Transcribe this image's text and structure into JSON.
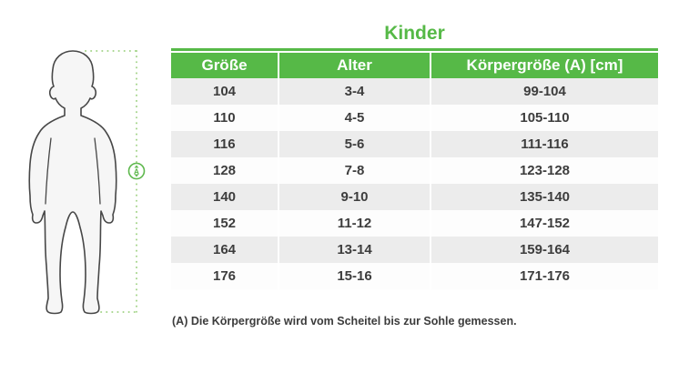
{
  "title": "Kinder",
  "colors": {
    "accent_green": "#56b947",
    "dotted_line_green": "#a6d58c",
    "marker_green": "#5eb84d",
    "row_alt_gray": "#ececec",
    "body_text": "#3d3d3d"
  },
  "figure": {
    "marker_label": "A"
  },
  "table": {
    "columns": [
      "Größe",
      "Alter",
      "Körpergröße (A) [cm]"
    ],
    "rows": [
      [
        "104",
        "3-4",
        "99-104"
      ],
      [
        "110",
        "4-5",
        "105-110"
      ],
      [
        "116",
        "5-6",
        "111-116"
      ],
      [
        "128",
        "7-8",
        "123-128"
      ],
      [
        "140",
        "9-10",
        "135-140"
      ],
      [
        "152",
        "11-12",
        "147-152"
      ],
      [
        "164",
        "13-14",
        "159-164"
      ],
      [
        "176",
        "15-16",
        "171-176"
      ]
    ]
  },
  "footnote": "(A) Die Körpergröße wird vom Scheitel bis zur Sohle gemessen.",
  "chart_data": {
    "type": "table",
    "title": "Kinder",
    "columns": [
      "Größe",
      "Alter",
      "Körpergröße (A) [cm]"
    ],
    "rows": [
      [
        "104",
        "3-4",
        "99-104"
      ],
      [
        "110",
        "4-5",
        "105-110"
      ],
      [
        "116",
        "5-6",
        "111-116"
      ],
      [
        "128",
        "7-8",
        "123-128"
      ],
      [
        "140",
        "9-10",
        "135-140"
      ],
      [
        "152",
        "11-12",
        "147-152"
      ],
      [
        "164",
        "13-14",
        "159-164"
      ],
      [
        "176",
        "15-16",
        "171-176"
      ]
    ],
    "annotation": "(A) Die Körpergröße wird vom Scheitel bis zur Sohle gemessen."
  }
}
